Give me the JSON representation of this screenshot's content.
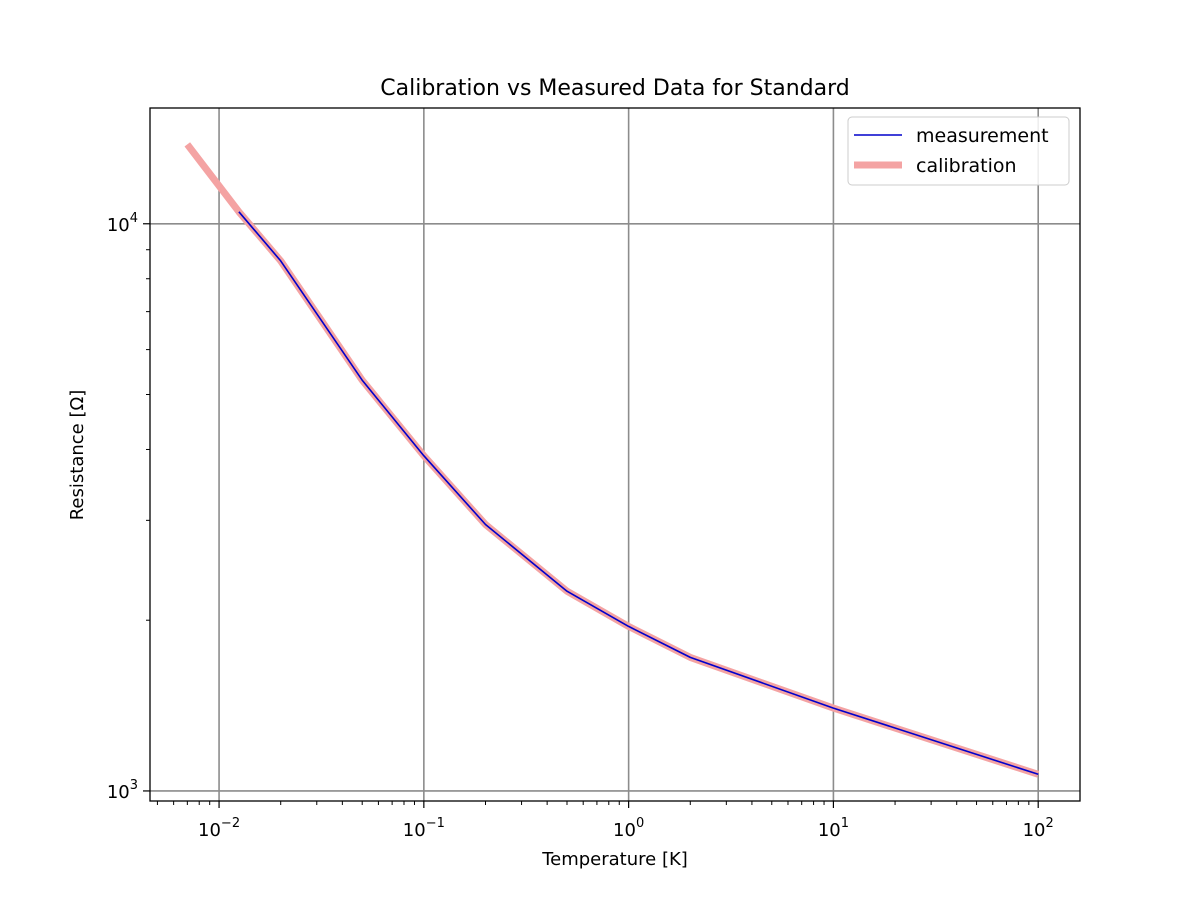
{
  "chart_data": {
    "type": "line",
    "title": "Calibration vs Measured Data for Standard",
    "xlabel": "Temperature [K]",
    "ylabel": "Resistance [Ω]",
    "xscale": "log",
    "yscale": "log",
    "xlim": [
      0.0046,
      160
    ],
    "ylim": [
      960,
      16000
    ],
    "grid": true,
    "legend_position": "top-right",
    "xticks": [
      {
        "value": 0.01,
        "base": "10",
        "exp": "−2"
      },
      {
        "value": 0.1,
        "base": "10",
        "exp": "−1"
      },
      {
        "value": 1,
        "base": "10",
        "exp": "0"
      },
      {
        "value": 10,
        "base": "10",
        "exp": "1"
      },
      {
        "value": 100,
        "base": "10",
        "exp": "2"
      }
    ],
    "yticks": [
      {
        "value": 1000,
        "base": "10",
        "exp": "3"
      },
      {
        "value": 10000,
        "base": "10",
        "exp": "4"
      }
    ],
    "series": [
      {
        "name": "calibration",
        "color": "#f4a3a3",
        "x": [
          0.007,
          0.0125,
          0.02,
          0.05,
          0.1,
          0.2,
          0.5,
          1,
          2,
          10,
          100
        ],
        "y": [
          13800,
          10500,
          8600,
          5300,
          3900,
          2950,
          2250,
          1950,
          1720,
          1400,
          1070
        ]
      },
      {
        "name": "measurement",
        "color": "#0000cc",
        "x": [
          0.0125,
          0.02,
          0.05,
          0.1,
          0.2,
          0.5,
          1,
          2,
          10,
          100
        ],
        "y": [
          10500,
          8600,
          5300,
          3900,
          2950,
          2250,
          1950,
          1720,
          1400,
          1070
        ]
      }
    ]
  }
}
